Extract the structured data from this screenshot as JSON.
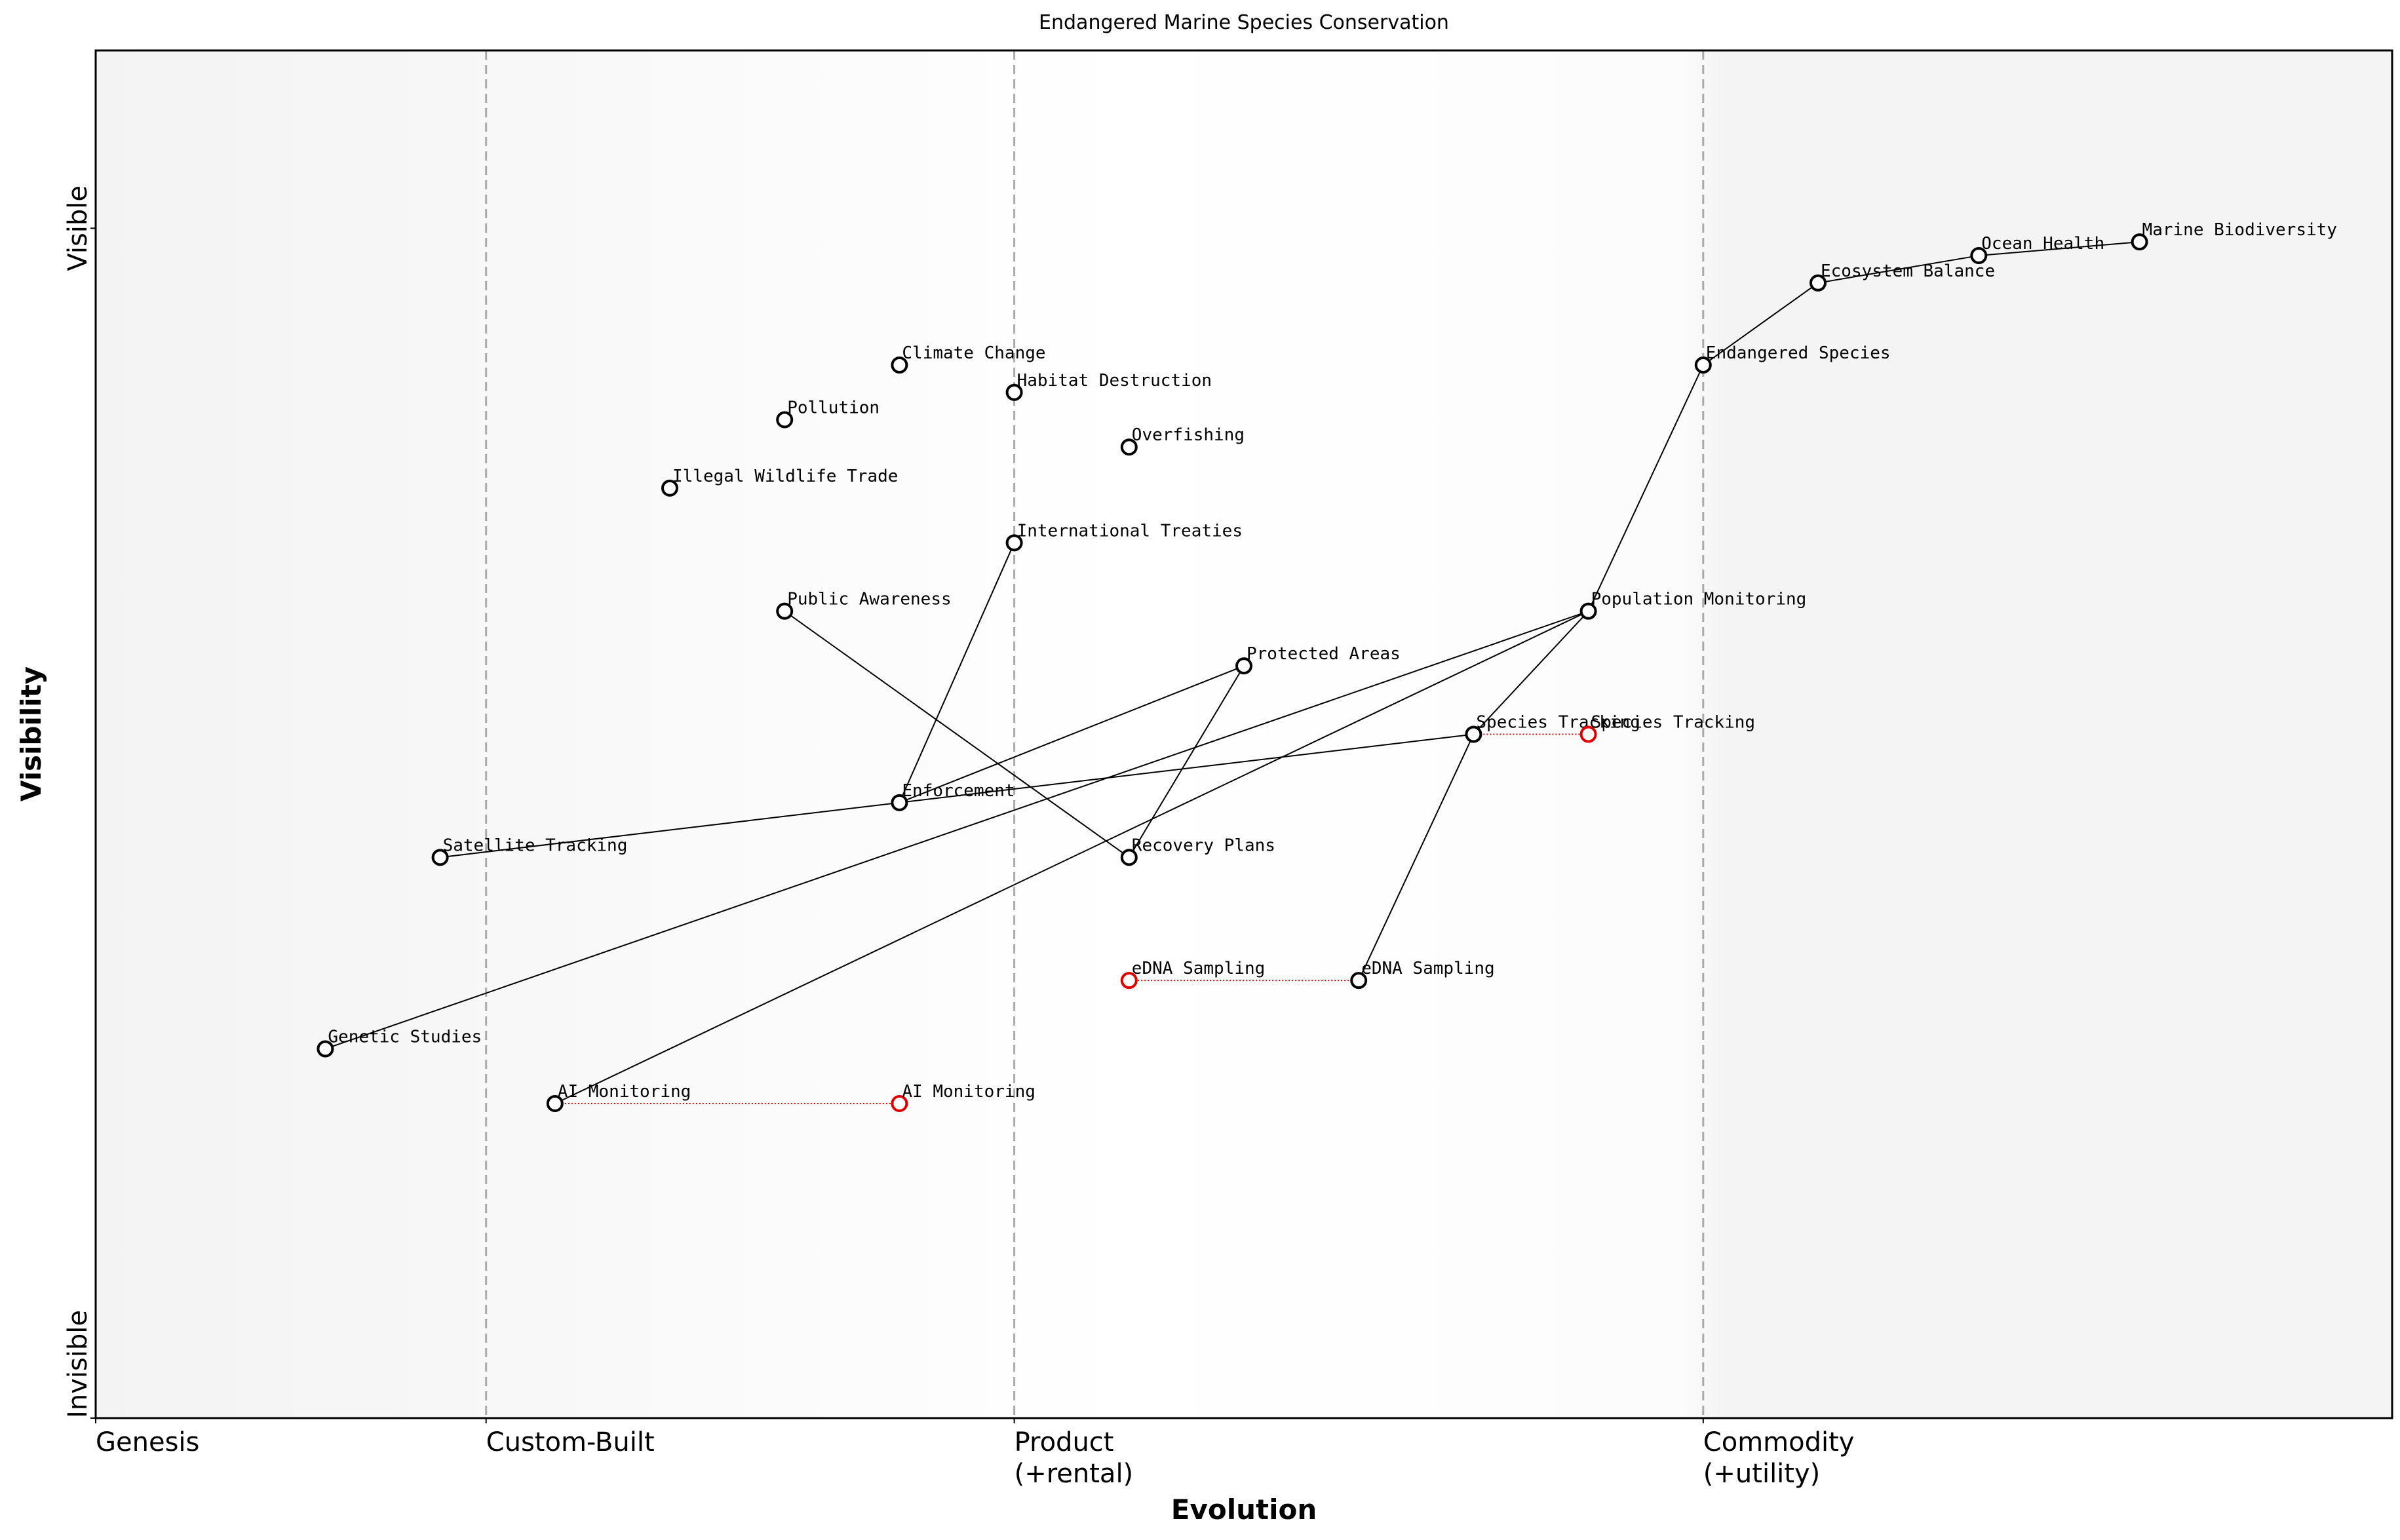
{
  "chart_data": {
    "type": "wardley",
    "title": "Endangered Marine Species Conservation",
    "xlabel": "Evolution",
    "ylabel": "Visibility",
    "xlim": [
      0,
      1
    ],
    "ylim": [
      0,
      1
    ],
    "xticks": [
      {
        "value": 0,
        "label": "Genesis"
      },
      {
        "value": 0.17,
        "label": "Custom-Built"
      },
      {
        "value": 0.4,
        "label": "Product\n(+rental)"
      },
      {
        "value": 0.7,
        "label": "Commodity\n(+utility)"
      }
    ],
    "yticks": [
      {
        "value": 0,
        "label": "Invisible"
      },
      {
        "value": 0.87,
        "label": "Visible"
      }
    ],
    "color": "#000000",
    "evolve_color": "#e00000",
    "components": [
      {
        "name": "Marine Biodiversity",
        "x": 0.89,
        "y": 0.86
      },
      {
        "name": "Ocean Health",
        "x": 0.82,
        "y": 0.85
      },
      {
        "name": "Ecosystem Balance",
        "x": 0.75,
        "y": 0.83
      },
      {
        "name": "Endangered Species",
        "x": 0.7,
        "y": 0.77
      },
      {
        "name": "Climate Change",
        "x": 0.35,
        "y": 0.77
      },
      {
        "name": "Habitat Destruction",
        "x": 0.4,
        "y": 0.75
      },
      {
        "name": "Pollution",
        "x": 0.3,
        "y": 0.73
      },
      {
        "name": "Overfishing",
        "x": 0.45,
        "y": 0.71
      },
      {
        "name": "Illegal Wildlife Trade",
        "x": 0.25,
        "y": 0.68
      },
      {
        "name": "International Treaties",
        "x": 0.4,
        "y": 0.64
      },
      {
        "name": "Public Awareness",
        "x": 0.3,
        "y": 0.59
      },
      {
        "name": "Population Monitoring",
        "x": 0.65,
        "y": 0.59
      },
      {
        "name": "Protected Areas",
        "x": 0.5,
        "y": 0.55
      },
      {
        "name": "Species Tracking",
        "x": 0.6,
        "y": 0.5
      },
      {
        "name": "Enforcement",
        "x": 0.35,
        "y": 0.45
      },
      {
        "name": "Satellite Tracking",
        "x": 0.15,
        "y": 0.41
      },
      {
        "name": "Recovery Plans",
        "x": 0.45,
        "y": 0.41
      },
      {
        "name": "eDNA Sampling",
        "x": 0.55,
        "y": 0.32
      },
      {
        "name": "Genetic Studies",
        "x": 0.1,
        "y": 0.27
      },
      {
        "name": "AI Monitoring",
        "x": 0.2,
        "y": 0.23
      }
    ],
    "links": [
      [
        0,
        1
      ],
      [
        1,
        2
      ],
      [
        2,
        3
      ],
      [
        3,
        11
      ],
      [
        9,
        14
      ],
      [
        10,
        16
      ],
      [
        12,
        14
      ],
      [
        12,
        16
      ],
      [
        11,
        18
      ],
      [
        11,
        19
      ],
      [
        11,
        13
      ],
      [
        13,
        15
      ],
      [
        13,
        17
      ]
    ],
    "evolutions": [
      {
        "name": "Species Tracking",
        "from": 13,
        "x": 0.65,
        "y": 0.5
      },
      {
        "name": "eDNA Sampling",
        "from": 17,
        "x": 0.45,
        "y": 0.32
      },
      {
        "name": "AI Monitoring",
        "from": 19,
        "x": 0.35,
        "y": 0.23
      }
    ]
  }
}
